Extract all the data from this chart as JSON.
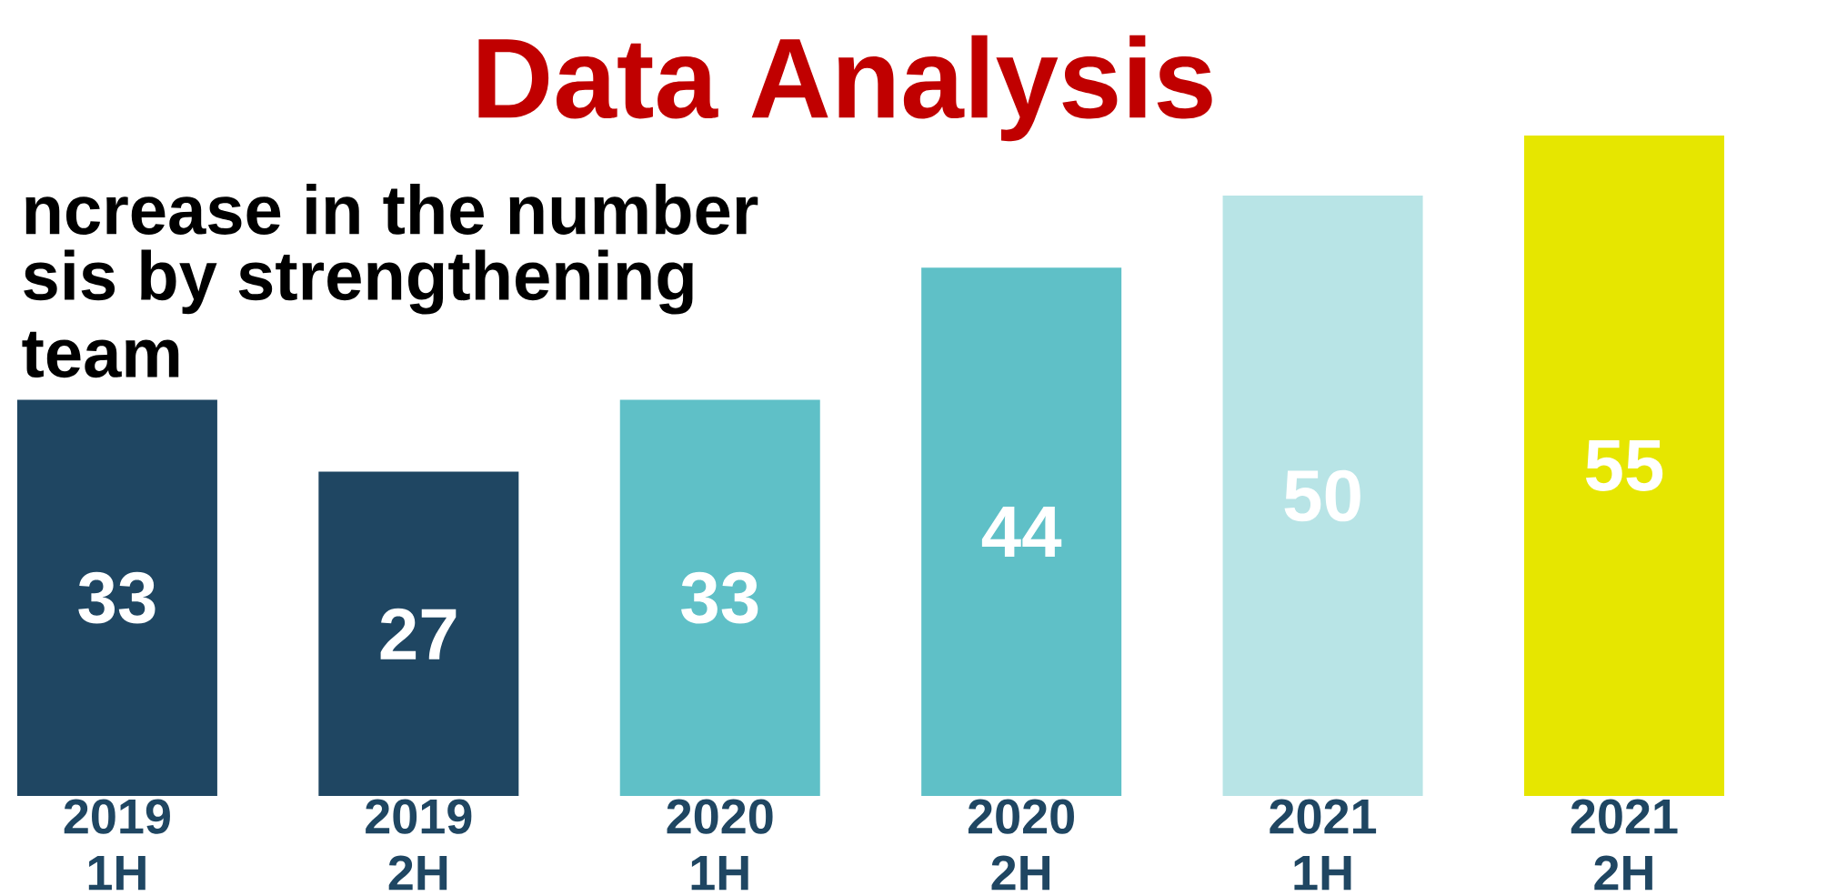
{
  "chart_data": {
    "type": "bar",
    "title": "Data Analysis",
    "annotations": [
      "ncrease in the number",
      "sis by strengthening",
      "team"
    ],
    "categories": [
      "2019 1H",
      "2019 2H",
      "2020 1H",
      "2020 2H",
      "2021 1H",
      "2021 2H"
    ],
    "values": [
      33,
      27,
      33,
      44,
      50,
      55
    ],
    "colors": [
      "#1f4662",
      "#1f4662",
      "#5fc0c7",
      "#5fc0c7",
      "#b8e4e6",
      "#e6e600"
    ],
    "data_labels": true
  }
}
